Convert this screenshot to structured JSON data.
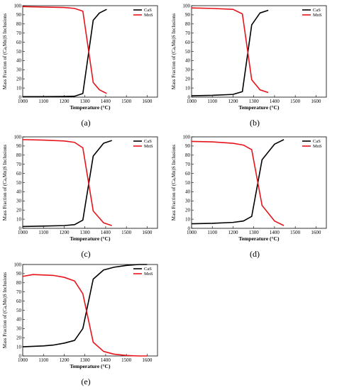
{
  "chart_data": [
    {
      "type": "line",
      "caption": "(a)",
      "xlabel": "Temperature (°C)",
      "ylabel": "Mass Fraction of (Ca,Mn)S Inclusions",
      "xlim": [
        1000,
        1650
      ],
      "ylim": [
        0,
        100
      ],
      "xticks": [
        1000,
        1100,
        1200,
        1300,
        1400,
        1500,
        1600
      ],
      "yticks": [
        0,
        10,
        20,
        30,
        40,
        50,
        60,
        70,
        80,
        90,
        100
      ],
      "legend_position": "top-right",
      "series": [
        {
          "name": "CaS",
          "color": "#000000",
          "x": [
            1000,
            1100,
            1200,
            1250,
            1290,
            1340,
            1370,
            1405
          ],
          "y": [
            0.5,
            0.5,
            0.7,
            1,
            4,
            84,
            92,
            96
          ]
        },
        {
          "name": "MnS",
          "color": "#e8141b",
          "x": [
            1000,
            1100,
            1200,
            1250,
            1290,
            1340,
            1370,
            1405
          ],
          "y": [
            99,
            98.5,
            98,
            97,
            94,
            16,
            8,
            4
          ]
        }
      ]
    },
    {
      "type": "line",
      "caption": "(b)",
      "xlabel": "Temperature (°C)",
      "ylabel": "Mass Fraction of (Ca,Mn)S Inclusions",
      "xlim": [
        1000,
        1650
      ],
      "ylim": [
        0,
        100
      ],
      "xticks": [
        1000,
        1100,
        1200,
        1300,
        1400,
        1500,
        1600
      ],
      "yticks": [
        0,
        10,
        20,
        30,
        40,
        50,
        60,
        70,
        80,
        90,
        100
      ],
      "legend_position": "top-right",
      "series": [
        {
          "name": "CaS",
          "color": "#000000",
          "x": [
            1000,
            1100,
            1200,
            1245,
            1290,
            1330,
            1370
          ],
          "y": [
            1.5,
            2,
            3,
            6,
            79,
            92,
            95
          ]
        },
        {
          "name": "MnS",
          "color": "#e8141b",
          "x": [
            1000,
            1100,
            1200,
            1245,
            1290,
            1330,
            1370
          ],
          "y": [
            97.5,
            97,
            96,
            91,
            19,
            8,
            5
          ]
        }
      ]
    },
    {
      "type": "line",
      "caption": "(c)",
      "xlabel": "Temperature (°C)",
      "ylabel": "Mass Fraction of (Ca,Mn)S Inclusions",
      "xlim": [
        1000,
        1650
      ],
      "ylim": [
        0,
        100
      ],
      "xticks": [
        1000,
        1100,
        1200,
        1300,
        1400,
        1500,
        1600
      ],
      "yticks": [
        0,
        10,
        20,
        30,
        40,
        50,
        60,
        70,
        80,
        90,
        100
      ],
      "legend_position": "top-right",
      "series": [
        {
          "name": "CaS",
          "color": "#000000",
          "x": [
            1000,
            1100,
            1200,
            1250,
            1290,
            1340,
            1390,
            1430
          ],
          "y": [
            2,
            2.5,
            3,
            4,
            9,
            79,
            93,
            96
          ]
        },
        {
          "name": "MnS",
          "color": "#e8141b",
          "x": [
            1000,
            1100,
            1200,
            1250,
            1290,
            1340,
            1390,
            1430
          ],
          "y": [
            97,
            96.5,
            95.5,
            94,
            88,
            19,
            6,
            3
          ]
        }
      ]
    },
    {
      "type": "line",
      "caption": "(d)",
      "xlabel": "Temperature (°C)",
      "ylabel": "Mass Fraction of (Ca,Mn)S Inclusions",
      "xlim": [
        1000,
        1650
      ],
      "ylim": [
        0,
        100
      ],
      "xticks": [
        1000,
        1100,
        1200,
        1300,
        1400,
        1500,
        1600
      ],
      "yticks": [
        0,
        10,
        20,
        30,
        40,
        50,
        60,
        70,
        80,
        90,
        100
      ],
      "legend_position": "top-right",
      "series": [
        {
          "name": "CaS",
          "color": "#000000",
          "x": [
            1000,
            1100,
            1200,
            1250,
            1290,
            1340,
            1400,
            1445
          ],
          "y": [
            5,
            5.5,
            6.5,
            8,
            13,
            75,
            92,
            97
          ]
        },
        {
          "name": "MnS",
          "color": "#e8141b",
          "x": [
            1000,
            1100,
            1200,
            1250,
            1290,
            1340,
            1400,
            1445
          ],
          "y": [
            95,
            94.5,
            93,
            91,
            86,
            25,
            8,
            3
          ]
        }
      ]
    },
    {
      "type": "line",
      "caption": "(e)",
      "xlabel": "Temperature (°C)",
      "ylabel": "Mass Fraction of (Ca,Mn)S Inclusions",
      "xlim": [
        1000,
        1650
      ],
      "ylim": [
        0,
        100
      ],
      "xticks": [
        1000,
        1100,
        1200,
        1300,
        1400,
        1500,
        1600
      ],
      "yticks": [
        0,
        10,
        20,
        30,
        40,
        50,
        60,
        70,
        80,
        90,
        100
      ],
      "legend_position": "top-right",
      "series": [
        {
          "name": "CaS",
          "color": "#000000",
          "x": [
            1000,
            1050,
            1100,
            1150,
            1200,
            1250,
            1290,
            1340,
            1390,
            1440,
            1500,
            1560,
            1600
          ],
          "y": [
            10,
            10.5,
            11,
            12,
            14,
            17,
            30,
            84,
            94,
            97,
            99,
            100,
            100
          ]
        },
        {
          "name": "MnS",
          "color": "#e8141b",
          "x": [
            1000,
            1050,
            1100,
            1150,
            1200,
            1250,
            1290,
            1340,
            1390,
            1440,
            1500,
            1560,
            1600
          ],
          "y": [
            87,
            89,
            88.5,
            88,
            86,
            82,
            68,
            15,
            5,
            2,
            0.5,
            0,
            0
          ]
        }
      ]
    }
  ]
}
